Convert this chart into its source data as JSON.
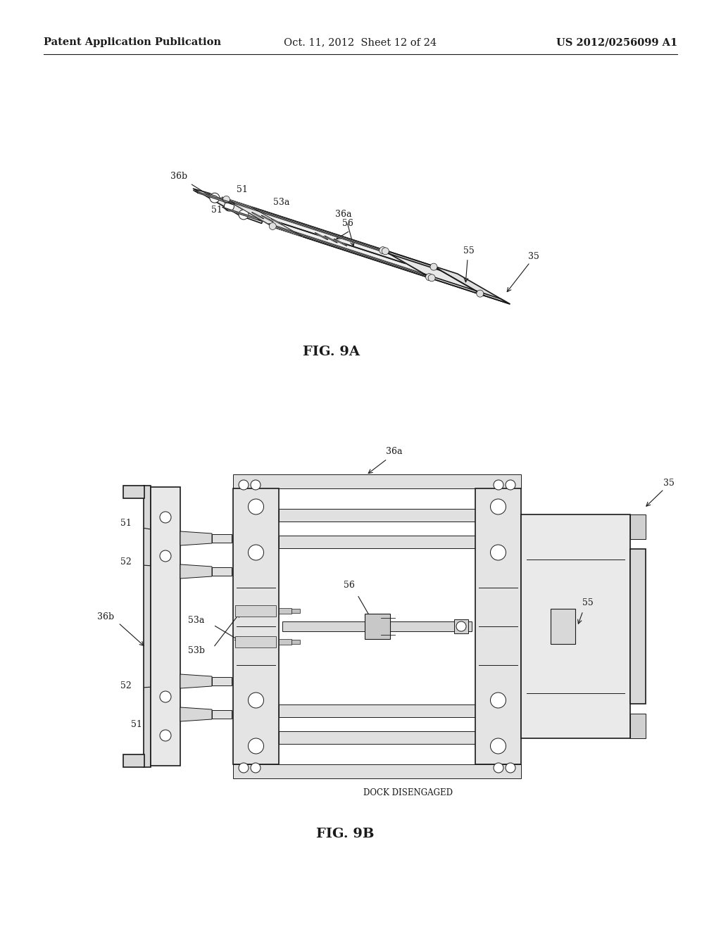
{
  "background_color": "#ffffff",
  "header": {
    "left": "Patent Application Publication",
    "center": "Oct. 11, 2012  Sheet 12 of 24",
    "right": "US 2012/0256099 A1",
    "fontsize": 10.5
  },
  "line_color": "#1a1a1a",
  "label_fontsize": 9,
  "fig9a_caption": "FIG. 9A",
  "fig9b_caption": "FIG. 9B",
  "dock_label": "DOCK DISENGAGED"
}
